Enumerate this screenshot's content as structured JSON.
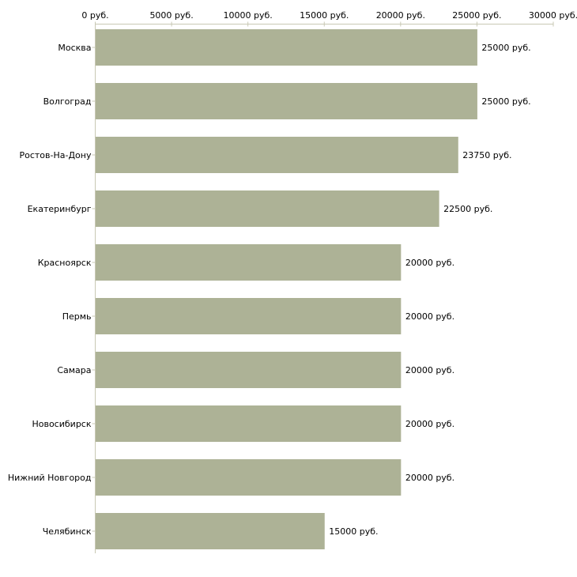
{
  "chart_data": {
    "type": "bar",
    "orientation": "horizontal",
    "title": "",
    "xlabel": "",
    "ylabel": "",
    "xlim": [
      0,
      30000
    ],
    "unit_suffix": " руб.",
    "ticks": [
      "0 руб.",
      "5000 руб.",
      "10000 руб.",
      "15000 руб.",
      "20000 руб.",
      "25000 руб.",
      "30000 руб."
    ],
    "tick_values": [
      0,
      5000,
      10000,
      15000,
      20000,
      25000,
      30000
    ],
    "categories": [
      "Москва",
      "Волгоград",
      "Ростов-На-Дону",
      "Екатеринбург",
      "Красноярск",
      "Пермь",
      "Самара",
      "Новосибирск",
      "Нижний Новгород",
      "Челябинск"
    ],
    "values": [
      25000,
      25000,
      23750,
      22500,
      20000,
      20000,
      20000,
      20000,
      20000,
      15000
    ],
    "value_labels": [
      "25000 руб.",
      "25000 руб.",
      "23750 руб.",
      "22500 руб.",
      "20000 руб.",
      "20000 руб.",
      "20000 руб.",
      "20000 руб.",
      "20000 руб.",
      "15000 руб."
    ],
    "bar_color": "#adb296",
    "axis_color": "#c8c8b4",
    "grid": false
  }
}
